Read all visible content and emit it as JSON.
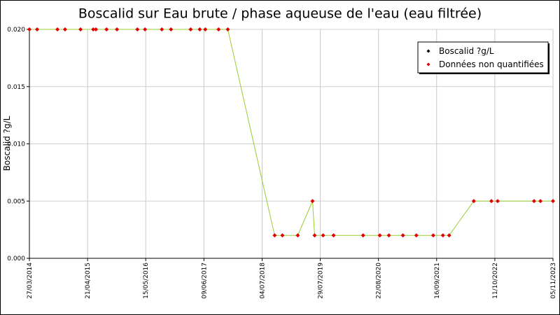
{
  "chart_data": {
    "type": "line",
    "title": "Boscalid sur Eau brute / phase aqueuse de l'eau (eau filtrée)",
    "y_label": "Boscalid ?g/L",
    "x": [
      "27/03/2014",
      "18/05/2014",
      "01/10/2014",
      "21/11/2014",
      "05/03/2015",
      "29/05/2015",
      "16/06/2015",
      "26/08/2015",
      "04/11/2015",
      "20/03/2016",
      "10/05/2016",
      "31/08/2016",
      "31/10/2016",
      "12/03/2017",
      "12/05/2017",
      "18/06/2017",
      "15/09/2017",
      "16/11/2017",
      "26/09/2018",
      "17/11/2018",
      "28/02/2019",
      "07/06/2019",
      "21/06/2019",
      "17/08/2019",
      "26/10/2019",
      "11/05/2020",
      "31/08/2020",
      "31/10/2020",
      "02/02/2021",
      "03/05/2021",
      "24/08/2021",
      "28/10/2021",
      "09/12/2021",
      "23/05/2022",
      "18/09/2022",
      "30/10/2022",
      "01/07/2023",
      "13/08/2023",
      "05/11/2023"
    ],
    "series": [
      {
        "name": "Boscalid ?g/L",
        "color": "#000000",
        "values": [
          null,
          null,
          null,
          null,
          null,
          null,
          null,
          null,
          null,
          null,
          null,
          null,
          null,
          null,
          null,
          null,
          null,
          null,
          null,
          null,
          null,
          null,
          null,
          null,
          null,
          null,
          null,
          null,
          null,
          null,
          null,
          null,
          null,
          null,
          null,
          null,
          null,
          null,
          null
        ]
      },
      {
        "name": "Données non quantifiées",
        "color": "#e00000",
        "line_color": "#9acd32",
        "values": [
          0.02,
          0.02,
          0.02,
          0.02,
          0.02,
          0.02,
          0.02,
          0.02,
          0.02,
          0.02,
          0.02,
          0.02,
          0.02,
          0.02,
          0.02,
          0.02,
          0.02,
          0.02,
          0.002,
          0.002,
          0.002,
          0.005,
          0.002,
          0.002,
          0.002,
          0.002,
          0.002,
          0.002,
          0.002,
          0.002,
          0.002,
          0.002,
          0.002,
          0.005,
          0.005,
          0.005,
          0.005,
          0.005,
          0.005
        ]
      }
    ],
    "xlim": [
      "27/03/2014",
      "05/11/2023"
    ],
    "xticks": [
      "27/03/2014",
      "21/04/2015",
      "15/05/2016",
      "09/06/2017",
      "04/07/2018",
      "29/07/2019",
      "22/08/2020",
      "16/09/2021",
      "11/10/2022",
      "05/11/2023"
    ],
    "ylim": [
      0,
      0.02
    ],
    "yticks": [
      {
        "value": 0,
        "label": "0.000"
      },
      {
        "value": 0.005,
        "label": "0.005"
      },
      {
        "value": 0.01,
        "label": "0.010"
      },
      {
        "value": 0.015,
        "label": "0.015"
      },
      {
        "value": 0.02,
        "label": "0.020"
      }
    ],
    "grid": true,
    "legend": "top-right"
  }
}
